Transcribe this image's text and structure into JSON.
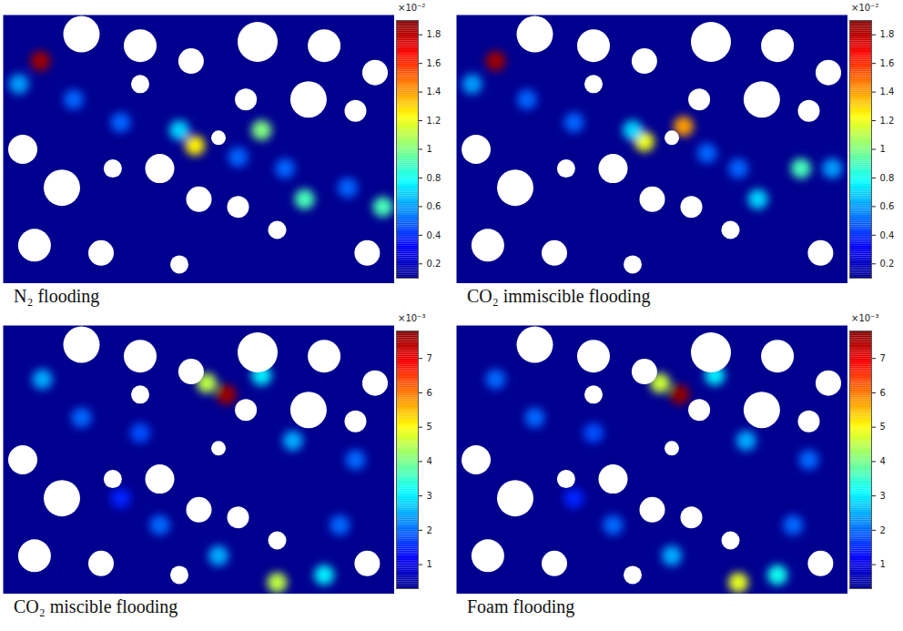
{
  "chart_data": [
    {
      "type": "heatmap",
      "title": "N₂ flooding",
      "xlim": [
        0,
        100
      ],
      "ylim": [
        0,
        70
      ],
      "tick_labels": false,
      "hotspots": {
        "x": [
          9.5,
          4,
          18,
          30,
          49,
          45,
          66,
          60,
          77,
          88,
          97,
          72
        ],
        "y": [
          58,
          52,
          48,
          42,
          36,
          40,
          40,
          33,
          22,
          25,
          20,
          30
        ],
        "values": [
          1.85,
          0.6,
          0.5,
          0.5,
          1.25,
          0.7,
          1.0,
          0.5,
          0.9,
          0.5,
          0.9,
          0.5
        ]
      },
      "colorbar": {
        "range": [
          0.1,
          1.9
        ],
        "ticks": [
          0.2,
          0.4,
          0.6,
          0.8,
          1,
          1.2,
          1.4,
          1.6,
          1.8
        ],
        "label": "×10⁻²"
      }
    },
    {
      "type": "heatmap",
      "title": "CO₂ immiscible flooding",
      "xlim": [
        0,
        100
      ],
      "ylim": [
        0,
        70
      ],
      "tick_labels": false,
      "hotspots": {
        "x": [
          10,
          4,
          18,
          30,
          48,
          45,
          58,
          64,
          77,
          88,
          96,
          72
        ],
        "y": [
          58,
          52,
          48,
          42,
          37,
          40,
          41,
          34,
          22,
          30,
          30,
          30
        ],
        "values": [
          1.85,
          0.6,
          0.5,
          0.5,
          1.2,
          0.7,
          1.4,
          0.5,
          0.7,
          0.9,
          0.6,
          0.5
        ]
      },
      "colorbar": {
        "range": [
          0.1,
          1.9
        ],
        "ticks": [
          0.2,
          0.4,
          0.6,
          0.8,
          1,
          1.2,
          1.4,
          1.6,
          1.8
        ],
        "label": "×10⁻²"
      }
    },
    {
      "type": "heatmap",
      "title": "CO₂ miscible flooding",
      "xlim": [
        0,
        100
      ],
      "ylim": [
        0,
        70
      ],
      "tick_labels": false,
      "hotspots": {
        "x": [
          57,
          52,
          10,
          20,
          35,
          66,
          74,
          90,
          70,
          82,
          55,
          40,
          30,
          86
        ],
        "y": [
          52,
          55,
          56,
          46,
          42,
          57,
          40,
          35,
          3,
          5,
          10,
          18,
          25,
          18
        ],
        "values": [
          7.6,
          4.5,
          2.5,
          2.0,
          1.8,
          3.0,
          2.5,
          2.0,
          4.5,
          3.0,
          2.5,
          2.0,
          1.5,
          2.0
        ]
      },
      "colorbar": {
        "range": [
          0.3,
          7.8
        ],
        "ticks": [
          1,
          2,
          3,
          4,
          5,
          6,
          7
        ],
        "label": "×10⁻³"
      }
    },
    {
      "type": "heatmap",
      "title": "Foam flooding",
      "xlim": [
        0,
        100
      ],
      "ylim": [
        0,
        70
      ],
      "tick_labels": false,
      "hotspots": {
        "x": [
          57,
          52,
          10,
          20,
          35,
          66,
          74,
          90,
          72,
          82,
          55,
          40,
          30,
          86
        ],
        "y": [
          52,
          55,
          56,
          46,
          42,
          57,
          40,
          35,
          3,
          5,
          10,
          18,
          25,
          18
        ],
        "values": [
          7.7,
          4.6,
          2.0,
          2.0,
          1.8,
          3.0,
          2.5,
          2.0,
          4.8,
          3.2,
          2.5,
          2.0,
          1.5,
          2.0
        ]
      },
      "colorbar": {
        "range": [
          0.3,
          7.8
        ],
        "ticks": [
          1,
          2,
          3,
          4,
          5,
          6,
          7
        ],
        "label": "×10⁻³"
      }
    }
  ]
}
